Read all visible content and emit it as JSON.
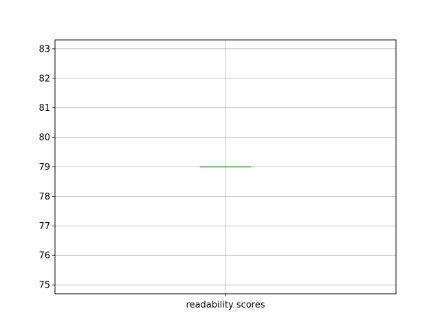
{
  "chart_data": {
    "type": "box",
    "categories": [
      "readability scores"
    ],
    "series": [
      {
        "values": [
          79
        ],
        "min": 79,
        "q1": 79,
        "median": 79,
        "q3": 79,
        "max": 79
      }
    ],
    "title": "",
    "xlabel": "",
    "ylabel": "",
    "ylim": [
      74.7,
      83.3
    ],
    "yticks": [
      75,
      76,
      77,
      78,
      79,
      80,
      81,
      82,
      83
    ],
    "grid": true,
    "colors": {
      "grid": "#b0b0b0",
      "axes": "#000000",
      "box": "#3a8fb7",
      "median": "#2ca02c"
    }
  }
}
